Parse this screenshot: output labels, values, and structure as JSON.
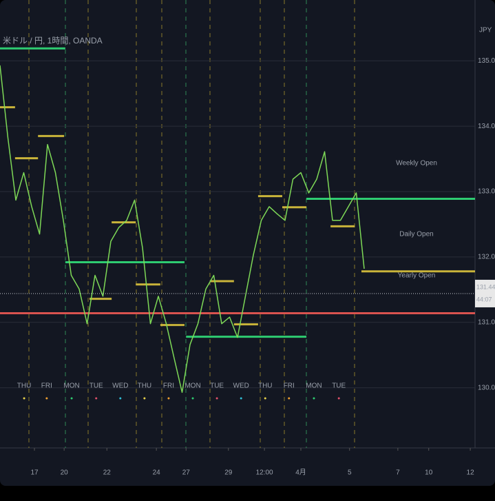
{
  "chart_data": {
    "type": "line",
    "title": "米ドル / 円, 1時間, OANDA",
    "currency": "JPY",
    "xlim": [
      0,
      120
    ],
    "ylim": [
      129.08,
      135.93
    ],
    "grid": true,
    "yticks": [
      {
        "value": 130,
        "label": "130.000"
      },
      {
        "value": 131,
        "label": "131.000"
      },
      {
        "value": 132,
        "label": "132.000"
      },
      {
        "value": 133,
        "label": "133.000"
      },
      {
        "value": 134,
        "label": "134.000"
      },
      {
        "value": 135,
        "label": "135.000"
      }
    ],
    "xticks": [
      {
        "value": 8.7,
        "label": "17"
      },
      {
        "value": 16.2,
        "label": "20"
      },
      {
        "value": 27,
        "label": "22"
      },
      {
        "value": 39.5,
        "label": "24"
      },
      {
        "value": 47,
        "label": "27"
      },
      {
        "value": 57.7,
        "label": "29"
      },
      {
        "value": 66.8,
        "label": "12:00"
      },
      {
        "value": 76,
        "label": "4月"
      },
      {
        "value": 88.3,
        "label": "5"
      },
      {
        "value": 100.5,
        "label": "7"
      },
      {
        "value": 108.3,
        "label": "10"
      },
      {
        "value": 118.8,
        "label": "12"
      }
    ],
    "series": [
      {
        "color": "#7ed957",
        "x": [
          0,
          2,
          4,
          6,
          8,
          10,
          12,
          14,
          16,
          18,
          20,
          22,
          24,
          26,
          28,
          30,
          32,
          34,
          36,
          38,
          40,
          42,
          44,
          46,
          48,
          50,
          52,
          54,
          56,
          58,
          60,
          62,
          64,
          66,
          68,
          70,
          72,
          74,
          76,
          78,
          80,
          82,
          84,
          86,
          88,
          90,
          92
        ],
        "values": [
          134.93,
          133.82,
          132.87,
          133.29,
          132.77,
          132.35,
          133.72,
          133.29,
          132.56,
          131.72,
          131.51,
          130.98,
          131.72,
          131.4,
          132.24,
          132.45,
          132.56,
          132.87,
          132.14,
          130.98,
          131.4,
          130.98,
          130.45,
          129.93,
          130.66,
          130.98,
          131.51,
          131.72,
          130.98,
          131.08,
          130.77,
          131.4,
          132.03,
          132.56,
          132.77,
          132.66,
          132.56,
          133.19,
          133.29,
          132.98,
          133.19,
          133.61,
          132.56,
          132.56,
          132.77,
          132.98,
          131.82
        ]
      }
    ],
    "levels": [
      {
        "name": "Weekly Open",
        "color": "#2ecc71",
        "label_color": "#c9b43a",
        "segments": [
          {
            "x0": 0,
            "x1": 16.5,
            "value": 135.19
          },
          {
            "x0": 16.5,
            "x1": 46.6,
            "value": 131.92
          },
          {
            "x0": 47,
            "x1": 77.4,
            "value": 130.78
          },
          {
            "x0": 77.4,
            "x1": 120,
            "value": 132.89
          }
        ]
      },
      {
        "name": "Daily Open",
        "color": "#c9b43a",
        "label_color": "#e8d24a",
        "segments": [
          {
            "x0": 0,
            "x1": 3.8,
            "value": 134.29
          },
          {
            "x0": 3.8,
            "x1": 9.6,
            "value": 133.51
          },
          {
            "x0": 9.6,
            "x1": 16.2,
            "value": 133.85
          },
          {
            "x0": 22.6,
            "x1": 28.2,
            "value": 131.36
          },
          {
            "x0": 28.2,
            "x1": 34.3,
            "value": 132.53
          },
          {
            "x0": 34.3,
            "x1": 40.5,
            "value": 131.58
          },
          {
            "x0": 40.5,
            "x1": 46.6,
            "value": 130.96
          },
          {
            "x0": 53,
            "x1": 59.1,
            "value": 131.63
          },
          {
            "x0": 59.1,
            "x1": 65.2,
            "value": 130.97
          },
          {
            "x0": 65.2,
            "x1": 71.3,
            "value": 132.93
          },
          {
            "x0": 71.3,
            "x1": 77.4,
            "value": 132.76
          },
          {
            "x0": 83.5,
            "x1": 89.6,
            "value": 132.47
          },
          {
            "x0": 91.3,
            "x1": 120,
            "value": 131.78
          }
        ]
      },
      {
        "name": "Yearly Open",
        "color": "#d9534f",
        "label_color": "#d9534f",
        "segments": [
          {
            "x0": 0,
            "x1": 120,
            "value": 131.14
          }
        ]
      }
    ],
    "day_labels": [
      {
        "label": "THU",
        "color": "#e8d24a",
        "x": 6.1
      },
      {
        "label": "FRI",
        "color": "#f0a030",
        "x": 11.8
      },
      {
        "label": "MON",
        "color": "#2ecc71",
        "x": 18.1
      },
      {
        "label": "TUE",
        "color": "#e0506a",
        "x": 24.3
      },
      {
        "label": "WED",
        "color": "#30c0d8",
        "x": 30.4
      },
      {
        "label": "THU",
        "color": "#e8d24a",
        "x": 36.5
      },
      {
        "label": "FRI",
        "color": "#f0a030",
        "x": 42.6
      },
      {
        "label": "MON",
        "color": "#2ecc71",
        "x": 48.7
      },
      {
        "label": "TUE",
        "color": "#e0506a",
        "x": 54.8
      },
      {
        "label": "WED",
        "color": "#30c0d8",
        "x": 60.9
      },
      {
        "label": "THU",
        "color": "#e8d24a",
        "x": 67
      },
      {
        "label": "FRI",
        "color": "#f0a030",
        "x": 73
      },
      {
        "label": "MON",
        "color": "#2ecc71",
        "x": 79.3
      },
      {
        "label": "TUE",
        "color": "#e0506a",
        "x": 85.6
      }
    ],
    "last_price": 131.441,
    "countdown": "44:07"
  }
}
